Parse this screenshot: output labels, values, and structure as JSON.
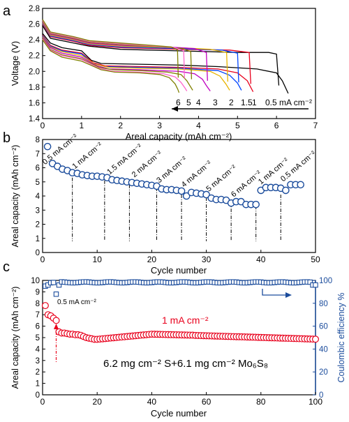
{
  "panels": [
    {
      "letter": "a"
    },
    {
      "letter": "b"
    },
    {
      "letter": "c"
    }
  ],
  "chart_data": [
    {
      "type": "line",
      "xlabel": "Areal capacity (mAh cm⁻²)",
      "ylabel": "Voltage (V)",
      "xlim": [
        0,
        7
      ],
      "ylim": [
        1.4,
        2.8
      ],
      "xticks": [
        "0",
        "1",
        "2",
        "3",
        "4",
        "5",
        "6",
        "7"
      ],
      "yticks": [
        "1.4",
        "1.6",
        "1.8",
        "2.0",
        "2.2",
        "2.4",
        "2.6",
        "2.8"
      ],
      "rate_labels": [
        "6",
        "5",
        "4",
        "3",
        "2",
        "1.5",
        "1",
        "0.5 mA cm⁻²"
      ],
      "series": [
        {
          "name": "0.5 mA cm⁻²",
          "color": "#000000",
          "capacity": 6.3,
          "discharge": [
            [
              0,
              2.48
            ],
            [
              0.2,
              2.36
            ],
            [
              0.5,
              2.3
            ],
            [
              1.0,
              2.26
            ],
            [
              1.25,
              2.14
            ],
            [
              1.5,
              2.1
            ],
            [
              2.5,
              2.09
            ],
            [
              3.5,
              2.08
            ],
            [
              4.5,
              2.06
            ],
            [
              5.5,
              2.03
            ],
            [
              6.0,
              1.98
            ],
            [
              6.15,
              1.88
            ],
            [
              6.3,
              1.72
            ]
          ],
          "charge": [
            [
              0,
              2.58
            ],
            [
              0.2,
              2.42
            ],
            [
              0.8,
              2.36
            ],
            [
              1.2,
              2.32
            ],
            [
              2.0,
              2.28
            ],
            [
              3.5,
              2.26
            ],
            [
              5.0,
              2.24
            ],
            [
              5.8,
              2.24
            ],
            [
              6.0,
              2.22
            ],
            [
              6.06,
              1.82
            ]
          ]
        },
        {
          "name": "1",
          "color": "#e8001c",
          "capacity": 5.4,
          "discharge": [
            [
              0,
              2.46
            ],
            [
              0.2,
              2.33
            ],
            [
              0.5,
              2.27
            ],
            [
              1.0,
              2.23
            ],
            [
              1.3,
              2.11
            ],
            [
              1.6,
              2.07
            ],
            [
              2.5,
              2.06
            ],
            [
              3.5,
              2.05
            ],
            [
              4.5,
              2.03
            ],
            [
              5.0,
              1.98
            ],
            [
              5.25,
              1.88
            ],
            [
              5.4,
              1.74
            ]
          ],
          "charge": [
            [
              0,
              2.6
            ],
            [
              0.2,
              2.44
            ],
            [
              0.8,
              2.38
            ],
            [
              1.2,
              2.33
            ],
            [
              2.0,
              2.3
            ],
            [
              3.5,
              2.28
            ],
            [
              4.8,
              2.27
            ],
            [
              5.3,
              2.24
            ],
            [
              5.34,
              1.84
            ]
          ]
        },
        {
          "name": "1.5",
          "color": "#0044ff",
          "capacity": 5.1,
          "discharge": [
            [
              0,
              2.45
            ],
            [
              0.2,
              2.32
            ],
            [
              0.5,
              2.26
            ],
            [
              1.0,
              2.22
            ],
            [
              1.3,
              2.1
            ],
            [
              1.6,
              2.06
            ],
            [
              2.5,
              2.05
            ],
            [
              3.5,
              2.04
            ],
            [
              4.5,
              2.01
            ],
            [
              4.8,
              1.95
            ],
            [
              5.0,
              1.85
            ],
            [
              5.1,
              1.76
            ]
          ],
          "charge": [
            [
              0,
              2.61
            ],
            [
              0.2,
              2.45
            ],
            [
              0.8,
              2.39
            ],
            [
              1.2,
              2.34
            ],
            [
              2.0,
              2.31
            ],
            [
              3.5,
              2.29
            ],
            [
              4.6,
              2.27
            ],
            [
              5.0,
              2.23
            ],
            [
              5.03,
              1.86
            ]
          ]
        },
        {
          "name": "2",
          "color": "#e8b400",
          "capacity": 4.8,
          "discharge": [
            [
              0,
              2.44
            ],
            [
              0.2,
              2.31
            ],
            [
              0.5,
              2.25
            ],
            [
              1.0,
              2.2
            ],
            [
              1.35,
              2.09
            ],
            [
              1.7,
              2.05
            ],
            [
              2.5,
              2.04
            ],
            [
              3.5,
              2.03
            ],
            [
              4.3,
              2.0
            ],
            [
              4.55,
              1.94
            ],
            [
              4.7,
              1.84
            ],
            [
              4.8,
              1.76
            ]
          ],
          "charge": [
            [
              0,
              2.62
            ],
            [
              0.2,
              2.46
            ],
            [
              0.8,
              2.4
            ],
            [
              1.2,
              2.35
            ],
            [
              2.0,
              2.32
            ],
            [
              3.5,
              2.3
            ],
            [
              4.3,
              2.28
            ],
            [
              4.72,
              2.24
            ],
            [
              4.75,
              1.87
            ]
          ]
        },
        {
          "name": "3",
          "color": "#c000c0",
          "capacity": 4.3,
          "discharge": [
            [
              0,
              2.43
            ],
            [
              0.2,
              2.3
            ],
            [
              0.5,
              2.23
            ],
            [
              1.0,
              2.18
            ],
            [
              1.4,
              2.07
            ],
            [
              1.7,
              2.03
            ],
            [
              2.5,
              2.02
            ],
            [
              3.5,
              2.0
            ],
            [
              3.9,
              1.97
            ],
            [
              4.1,
              1.9
            ],
            [
              4.2,
              1.82
            ],
            [
              4.3,
              1.75
            ]
          ],
          "charge": [
            [
              0,
              2.63
            ],
            [
              0.2,
              2.47
            ],
            [
              0.8,
              2.41
            ],
            [
              1.2,
              2.36
            ],
            [
              2.0,
              2.33
            ],
            [
              3.2,
              2.31
            ],
            [
              3.9,
              2.29
            ],
            [
              4.2,
              2.24
            ],
            [
              4.23,
              1.88
            ]
          ]
        },
        {
          "name": "4",
          "color": "#808000",
          "capacity": 3.85,
          "discharge": [
            [
              0,
              2.42
            ],
            [
              0.2,
              2.28
            ],
            [
              0.5,
              2.21
            ],
            [
              1.0,
              2.16
            ],
            [
              1.45,
              2.05
            ],
            [
              1.8,
              2.02
            ],
            [
              2.5,
              2.01
            ],
            [
              3.2,
              1.99
            ],
            [
              3.55,
              1.96
            ],
            [
              3.7,
              1.88
            ],
            [
              3.8,
              1.8
            ],
            [
              3.85,
              1.76
            ]
          ],
          "charge": [
            [
              0,
              2.64
            ],
            [
              0.2,
              2.48
            ],
            [
              0.8,
              2.42
            ],
            [
              1.2,
              2.37
            ],
            [
              2.0,
              2.34
            ],
            [
              3.0,
              2.31
            ],
            [
              3.6,
              2.29
            ],
            [
              3.8,
              2.25
            ],
            [
              3.82,
              1.9
            ]
          ]
        },
        {
          "name": "5",
          "color": "#ff66cc",
          "capacity": 3.7,
          "discharge": [
            [
              0,
              2.41
            ],
            [
              0.2,
              2.27
            ],
            [
              0.5,
              2.2
            ],
            [
              1.0,
              2.15
            ],
            [
              1.45,
              2.04
            ],
            [
              1.8,
              2.0
            ],
            [
              2.5,
              1.99
            ],
            [
              3.1,
              1.97
            ],
            [
              3.4,
              1.93
            ],
            [
              3.55,
              1.86
            ],
            [
              3.65,
              1.79
            ],
            [
              3.7,
              1.75
            ]
          ],
          "charge": [
            [
              0,
              2.65
            ],
            [
              0.2,
              2.49
            ],
            [
              0.8,
              2.43
            ],
            [
              1.2,
              2.38
            ],
            [
              2.0,
              2.35
            ],
            [
              2.9,
              2.32
            ],
            [
              3.4,
              2.3
            ],
            [
              3.62,
              2.26
            ],
            [
              3.64,
              1.91
            ]
          ]
        },
        {
          "name": "6",
          "color": "#808000",
          "capacity": 3.5,
          "discharge": [
            [
              0,
              2.4
            ],
            [
              0.2,
              2.26
            ],
            [
              0.5,
              2.18
            ],
            [
              1.0,
              2.13
            ],
            [
              1.5,
              2.02
            ],
            [
              1.85,
              1.99
            ],
            [
              2.5,
              1.98
            ],
            [
              3.0,
              1.96
            ],
            [
              3.25,
              1.92
            ],
            [
              3.4,
              1.84
            ],
            [
              3.47,
              1.77
            ],
            [
              3.5,
              1.73
            ]
          ],
          "charge": [
            [
              0,
              2.66
            ],
            [
              0.2,
              2.5
            ],
            [
              0.8,
              2.44
            ],
            [
              1.2,
              2.39
            ],
            [
              2.0,
              2.36
            ],
            [
              2.8,
              2.33
            ],
            [
              3.3,
              2.31
            ],
            [
              3.46,
              2.27
            ],
            [
              3.48,
              1.92
            ]
          ]
        }
      ]
    },
    {
      "type": "scatter",
      "xlabel": "Cycle number",
      "ylabel": "Areal capacity (mAh cm⁻²)",
      "xlim": [
        0,
        55
      ],
      "ylim": [
        0,
        8
      ],
      "xticks": [
        "0",
        "10",
        "20",
        "30",
        "40",
        "50"
      ],
      "yticks": [
        "0",
        "1",
        "2",
        "3",
        "4",
        "5",
        "6",
        "7",
        "8"
      ],
      "color": "#1b4c9c",
      "x": [
        1,
        2,
        3,
        4,
        5,
        6,
        7,
        8,
        9,
        10,
        11,
        12,
        13,
        14,
        15,
        16,
        17,
        18,
        19,
        20,
        21,
        22,
        23,
        24,
        25,
        26,
        27,
        28,
        29,
        30,
        31,
        32,
        33,
        34,
        35,
        36,
        37,
        38,
        39,
        40,
        41,
        42,
        43,
        44,
        45,
        46,
        47,
        48,
        49,
        50,
        51,
        52
      ],
      "y": [
        7.5,
        6.3,
        6.1,
        5.9,
        5.8,
        5.65,
        5.6,
        5.5,
        5.45,
        5.4,
        5.4,
        5.35,
        5.3,
        5.15,
        5.1,
        5.05,
        5.0,
        4.95,
        4.9,
        4.85,
        4.8,
        4.75,
        4.7,
        4.5,
        4.45,
        4.45,
        4.4,
        4.35,
        4.0,
        4.25,
        4.2,
        4.15,
        4.1,
        3.85,
        3.75,
        3.75,
        3.7,
        3.5,
        3.6,
        3.6,
        3.4,
        3.4,
        3.4,
        4.4,
        4.6,
        4.6,
        4.6,
        4.55,
        4.4,
        4.8,
        4.8,
        4.8
      ],
      "rate_labels": [
        {
          "text": "0.5 mA cm⁻²",
          "x": 0.5,
          "y": 6.2
        },
        {
          "text": "1 mA cm⁻²",
          "x": 6.5,
          "y": 5.9
        },
        {
          "text": "1.5 mA cm⁻²",
          "x": 13.5,
          "y": 5.5
        },
        {
          "text": "2 mA cm⁻²",
          "x": 18.5,
          "y": 5.3
        },
        {
          "text": "3 mA cm⁻²",
          "x": 23.5,
          "y": 4.9
        },
        {
          "text": "4 mA cm⁻²",
          "x": 28.5,
          "y": 4.6
        },
        {
          "text": "5 mA cm⁻²",
          "x": 33.5,
          "y": 4.3
        },
        {
          "text": "6 mA cm⁻²",
          "x": 38.5,
          "y": 3.9
        },
        {
          "text": "1 mA cm⁻²",
          "x": 44,
          "y": 4.8
        },
        {
          "text": "0.5 mA cm⁻²",
          "x": 48.5,
          "y": 5.0
        }
      ],
      "dividers": [
        {
          "x": 6,
          "y_top": 5.3
        },
        {
          "x": 12.5,
          "y_top": 5.1
        },
        {
          "x": 17.5,
          "y_top": 4.8
        },
        {
          "x": 23,
          "y_top": 4.6
        },
        {
          "x": 28,
          "y_top": 4.1
        },
        {
          "x": 33,
          "y_top": 3.9
        },
        {
          "x": 38,
          "y_top": 3.6
        },
        {
          "x": 43,
          "y_top": 3.3
        },
        {
          "x": 48,
          "y_top": 4.1
        }
      ]
    },
    {
      "type": "scatter",
      "xlabel": "Cycle number",
      "ylabel": "Areal capacity (mAh cm⁻²)",
      "ylabel_right": "Coulombic efficiency %",
      "xlim": [
        0,
        100
      ],
      "ylim": [
        0,
        10
      ],
      "ylim_right": [
        0,
        100
      ],
      "xticks": [
        "0",
        "20",
        "40",
        "60",
        "80",
        "100"
      ],
      "yticks": [
        "0",
        "1",
        "2",
        "3",
        "4",
        "5",
        "6",
        "7",
        "8",
        "9",
        "10"
      ],
      "yticks_right": [
        "0",
        "20",
        "40",
        "60",
        "80",
        "100"
      ],
      "annotation_rate_1": "1 mA cm⁻²",
      "annotation_rate_2": "0.5 mA cm⁻²",
      "annotation_loading": "6.2 mg cm⁻² S+6.1 mg cm⁻² Mo₆S₈",
      "series": [
        {
          "name": "Areal capacity",
          "color": "#e8001c"
        },
        {
          "name": "Coulombic efficiency",
          "color": "#1b4c9c"
        }
      ]
    }
  ]
}
